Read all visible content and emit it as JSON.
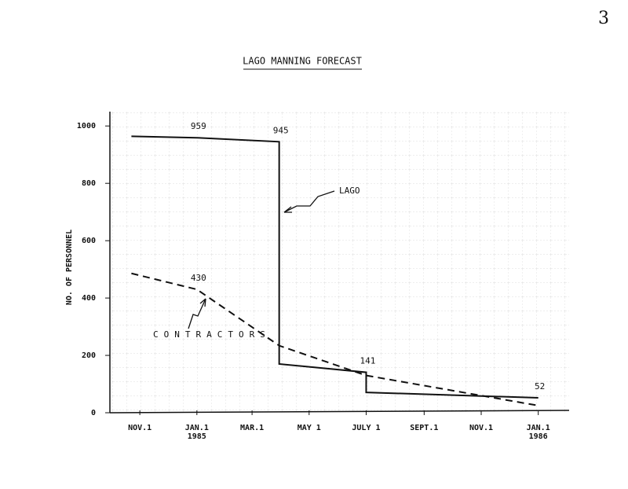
{
  "page_number": "3",
  "chart_data": {
    "type": "line",
    "title": "LAGO MANNING FORECAST",
    "y_label": "NO. OF PERSONNEL",
    "xlim": [
      "1984-09-30",
      "1986-02-03"
    ],
    "xticks": [
      {
        "value": "1984-11-01",
        "label": [
          "NOV.1"
        ]
      },
      {
        "value": "1985-01-01",
        "label": [
          "JAN.1",
          "1985"
        ]
      },
      {
        "value": "1985-03-01",
        "label": [
          "MAR.1"
        ]
      },
      {
        "value": "1985-05-01",
        "label": [
          "MAY 1"
        ]
      },
      {
        "value": "1985-07-01",
        "label": [
          "JULY 1"
        ]
      },
      {
        "value": "1985-09-01",
        "label": [
          "SEPT.1"
        ]
      },
      {
        "value": "1985-11-01",
        "label": [
          "NOV.1"
        ]
      },
      {
        "value": "1986-01-01",
        "label": [
          "JAN.1",
          "1986"
        ]
      }
    ],
    "ylim": [
      0,
      1050
    ],
    "yticks": [
      0,
      200,
      400,
      600,
      800,
      1000
    ],
    "series": [
      {
        "name": "LAGO",
        "color": "#111111",
        "line_style": "solid",
        "x": [
          "1984-10-23",
          "1985-01-01",
          "1985-03-30",
          "1985-03-30",
          "1985-07-01",
          "1985-07-01",
          "1986-01-01"
        ],
        "values": [
          964,
          959,
          945,
          170,
          141,
          71,
          52
        ],
        "value_labels": [
          null,
          "959",
          "945",
          null,
          "141",
          null,
          "52"
        ]
      },
      {
        "name": "CONTRACTORS",
        "color": "#111111",
        "line_style": "dashed",
        "x": [
          "1984-10-23",
          "1985-01-01",
          "1985-03-30",
          "1985-07-01",
          "1986-01-01"
        ],
        "values": [
          486,
          430,
          234,
          130,
          25
        ],
        "value_labels": [
          null,
          "430",
          null,
          null,
          null
        ]
      }
    ]
  }
}
